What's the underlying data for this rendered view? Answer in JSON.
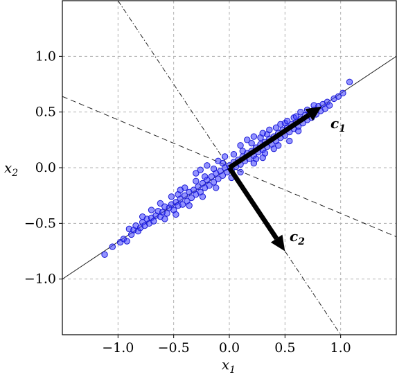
{
  "chart_data": {
    "type": "scatter",
    "title": "",
    "xlabel": "x1",
    "ylabel": "x2",
    "xlabel_parts": {
      "base": "x",
      "sub": "1"
    },
    "ylabel_parts": {
      "base": "x",
      "sub": "2"
    },
    "xlim": [
      -1.5,
      1.5
    ],
    "ylim": [
      -1.5,
      1.5
    ],
    "xticks": [
      -1.0,
      -0.5,
      0.0,
      0.5,
      1.0
    ],
    "yticks": [
      -1.0,
      -0.5,
      0.0,
      0.5,
      1.0
    ],
    "xtick_labels": [
      "−1.0",
      "−0.5",
      "0.0",
      "0.5",
      "1.0"
    ],
    "ytick_labels": [
      "−1.0",
      "−0.5",
      "0.0",
      "0.5",
      "1.0"
    ],
    "grid": true,
    "marker_color": "#3b3bff",
    "marker_edge_color": "#1a1ad6",
    "lines": [
      {
        "role": "principal-axis-1",
        "style": "solid",
        "x": [
          -1.5,
          1.5
        ],
        "y": [
          -1.0,
          1.0
        ]
      },
      {
        "role": "principal-axis-2",
        "style": "dashdot",
        "x": [
          -1.0,
          1.0
        ],
        "y": [
          1.5,
          -1.5
        ]
      },
      {
        "role": "perpendicular",
        "style": "dashed",
        "x": [
          -1.5,
          1.5
        ],
        "y": [
          0.64,
          -0.62
        ]
      }
    ],
    "vectors": [
      {
        "label_base": "c",
        "label_sub": "1",
        "label": "c1",
        "from": [
          0,
          0
        ],
        "to": [
          0.83,
          0.55
        ]
      },
      {
        "label_base": "c",
        "label_sub": "2",
        "label": "c2",
        "from": [
          0,
          0
        ],
        "to": [
          0.5,
          -0.75
        ]
      }
    ],
    "points": [
      [
        -1.12,
        -0.78
      ],
      [
        -1.05,
        -0.71
      ],
      [
        -0.98,
        -0.67
      ],
      [
        -0.95,
        -0.64
      ],
      [
        -0.92,
        -0.66
      ],
      [
        -0.9,
        -0.55
      ],
      [
        -0.88,
        -0.6
      ],
      [
        -0.86,
        -0.56
      ],
      [
        -0.84,
        -0.52
      ],
      [
        -0.82,
        -0.57
      ],
      [
        -0.8,
        -0.54
      ],
      [
        -0.78,
        -0.49
      ],
      [
        -0.76,
        -0.52
      ],
      [
        -0.74,
        -0.46
      ],
      [
        -0.72,
        -0.5
      ],
      [
        -0.7,
        -0.45
      ],
      [
        -0.68,
        -0.48
      ],
      [
        -0.66,
        -0.43
      ],
      [
        -0.64,
        -0.39
      ],
      [
        -0.62,
        -0.44
      ],
      [
        -0.6,
        -0.4
      ],
      [
        -0.58,
        -0.35
      ],
      [
        -0.56,
        -0.41
      ],
      [
        -0.54,
        -0.36
      ],
      [
        -0.52,
        -0.33
      ],
      [
        -0.5,
        -0.38
      ],
      [
        -0.48,
        -0.31
      ],
      [
        -0.46,
        -0.34
      ],
      [
        -0.44,
        -0.28
      ],
      [
        -0.42,
        -0.33
      ],
      [
        -0.4,
        -0.25
      ],
      [
        -0.38,
        -0.3
      ],
      [
        -0.36,
        -0.22
      ],
      [
        -0.34,
        -0.27
      ],
      [
        -0.32,
        -0.2
      ],
      [
        -0.3,
        -0.24
      ],
      [
        -0.28,
        -0.17
      ],
      [
        -0.26,
        -0.22
      ],
      [
        -0.24,
        -0.14
      ],
      [
        -0.22,
        -0.18
      ],
      [
        -0.2,
        -0.11
      ],
      [
        -0.18,
        -0.16
      ],
      [
        -0.16,
        -0.08
      ],
      [
        -0.14,
        -0.13
      ],
      [
        -0.12,
        -0.05
      ],
      [
        -0.1,
        -0.1
      ],
      [
        -0.08,
        -0.03
      ],
      [
        -0.06,
        -0.07
      ],
      [
        -0.04,
        0.0
      ],
      [
        -0.02,
        -0.04
      ],
      [
        0.0,
        0.02
      ],
      [
        0.02,
        -0.02
      ],
      [
        0.04,
        0.05
      ],
      [
        0.06,
        0.01
      ],
      [
        0.08,
        0.07
      ],
      [
        0.1,
        0.03
      ],
      [
        0.12,
        0.1
      ],
      [
        0.14,
        0.06
      ],
      [
        0.16,
        0.13
      ],
      [
        0.18,
        0.08
      ],
      [
        0.2,
        0.15
      ],
      [
        0.22,
        0.11
      ],
      [
        0.24,
        0.18
      ],
      [
        0.26,
        0.14
      ],
      [
        0.28,
        0.21
      ],
      [
        0.3,
        0.16
      ],
      [
        0.32,
        0.23
      ],
      [
        0.34,
        0.19
      ],
      [
        0.36,
        0.26
      ],
      [
        0.38,
        0.21
      ],
      [
        0.4,
        0.28
      ],
      [
        0.42,
        0.24
      ],
      [
        0.44,
        0.31
      ],
      [
        0.46,
        0.27
      ],
      [
        0.48,
        0.34
      ],
      [
        0.5,
        0.29
      ],
      [
        0.52,
        0.36
      ],
      [
        0.54,
        0.32
      ],
      [
        0.56,
        0.39
      ],
      [
        0.58,
        0.35
      ],
      [
        0.6,
        0.41
      ],
      [
        0.62,
        0.37
      ],
      [
        0.64,
        0.44
      ],
      [
        0.66,
        0.4
      ],
      [
        0.68,
        0.47
      ],
      [
        0.7,
        0.43
      ],
      [
        0.72,
        0.49
      ],
      [
        0.74,
        0.45
      ],
      [
        0.76,
        0.52
      ],
      [
        0.78,
        0.48
      ],
      [
        0.8,
        0.55
      ],
      [
        0.82,
        0.51
      ],
      [
        0.84,
        0.57
      ],
      [
        0.86,
        0.53
      ],
      [
        0.88,
        0.59
      ],
      [
        0.9,
        0.56
      ],
      [
        0.94,
        0.62
      ],
      [
        0.98,
        0.64
      ],
      [
        1.02,
        0.67
      ],
      [
        1.08,
        0.77
      ],
      [
        -0.46,
        -0.24
      ],
      [
        -0.4,
        -0.18
      ],
      [
        -0.3,
        -0.12
      ],
      [
        -0.22,
        -0.08
      ],
      [
        -0.14,
        -0.01
      ],
      [
        -0.06,
        0.04
      ],
      [
        0.04,
        0.12
      ],
      [
        0.12,
        0.15
      ],
      [
        0.2,
        0.22
      ],
      [
        0.28,
        0.27
      ],
      [
        0.34,
        0.3
      ],
      [
        0.42,
        0.36
      ],
      [
        0.5,
        0.4
      ],
      [
        0.58,
        0.45
      ],
      [
        0.64,
        0.5
      ],
      [
        -0.58,
        -0.46
      ],
      [
        -0.48,
        -0.42
      ],
      [
        -0.36,
        -0.34
      ],
      [
        -0.24,
        -0.26
      ],
      [
        -0.12,
        -0.18
      ],
      [
        0.02,
        -0.09
      ],
      [
        0.1,
        -0.04
      ],
      [
        0.22,
        0.04
      ],
      [
        0.3,
        0.09
      ],
      [
        0.4,
        0.17
      ],
      [
        0.1,
        0.2
      ],
      [
        0.16,
        0.25
      ],
      [
        0.22,
        0.28
      ],
      [
        0.3,
        0.31
      ],
      [
        0.36,
        0.34
      ],
      [
        0.46,
        0.39
      ],
      [
        0.52,
        0.42
      ],
      [
        0.6,
        0.46
      ],
      [
        0.7,
        0.52
      ],
      [
        0.76,
        0.56
      ],
      [
        -0.3,
        -0.05
      ],
      [
        -0.26,
        -0.02
      ],
      [
        -0.2,
        0.02
      ],
      [
        -0.1,
        0.06
      ],
      [
        -0.04,
        0.1
      ],
      [
        -0.62,
        -0.32
      ],
      [
        -0.7,
        -0.38
      ],
      [
        -0.78,
        -0.44
      ],
      [
        -0.52,
        -0.26
      ],
      [
        -0.44,
        -0.2
      ],
      [
        0.24,
        0.08
      ],
      [
        0.32,
        0.13
      ],
      [
        0.44,
        0.2
      ],
      [
        0.54,
        0.24
      ],
      [
        0.62,
        0.33
      ]
    ]
  }
}
